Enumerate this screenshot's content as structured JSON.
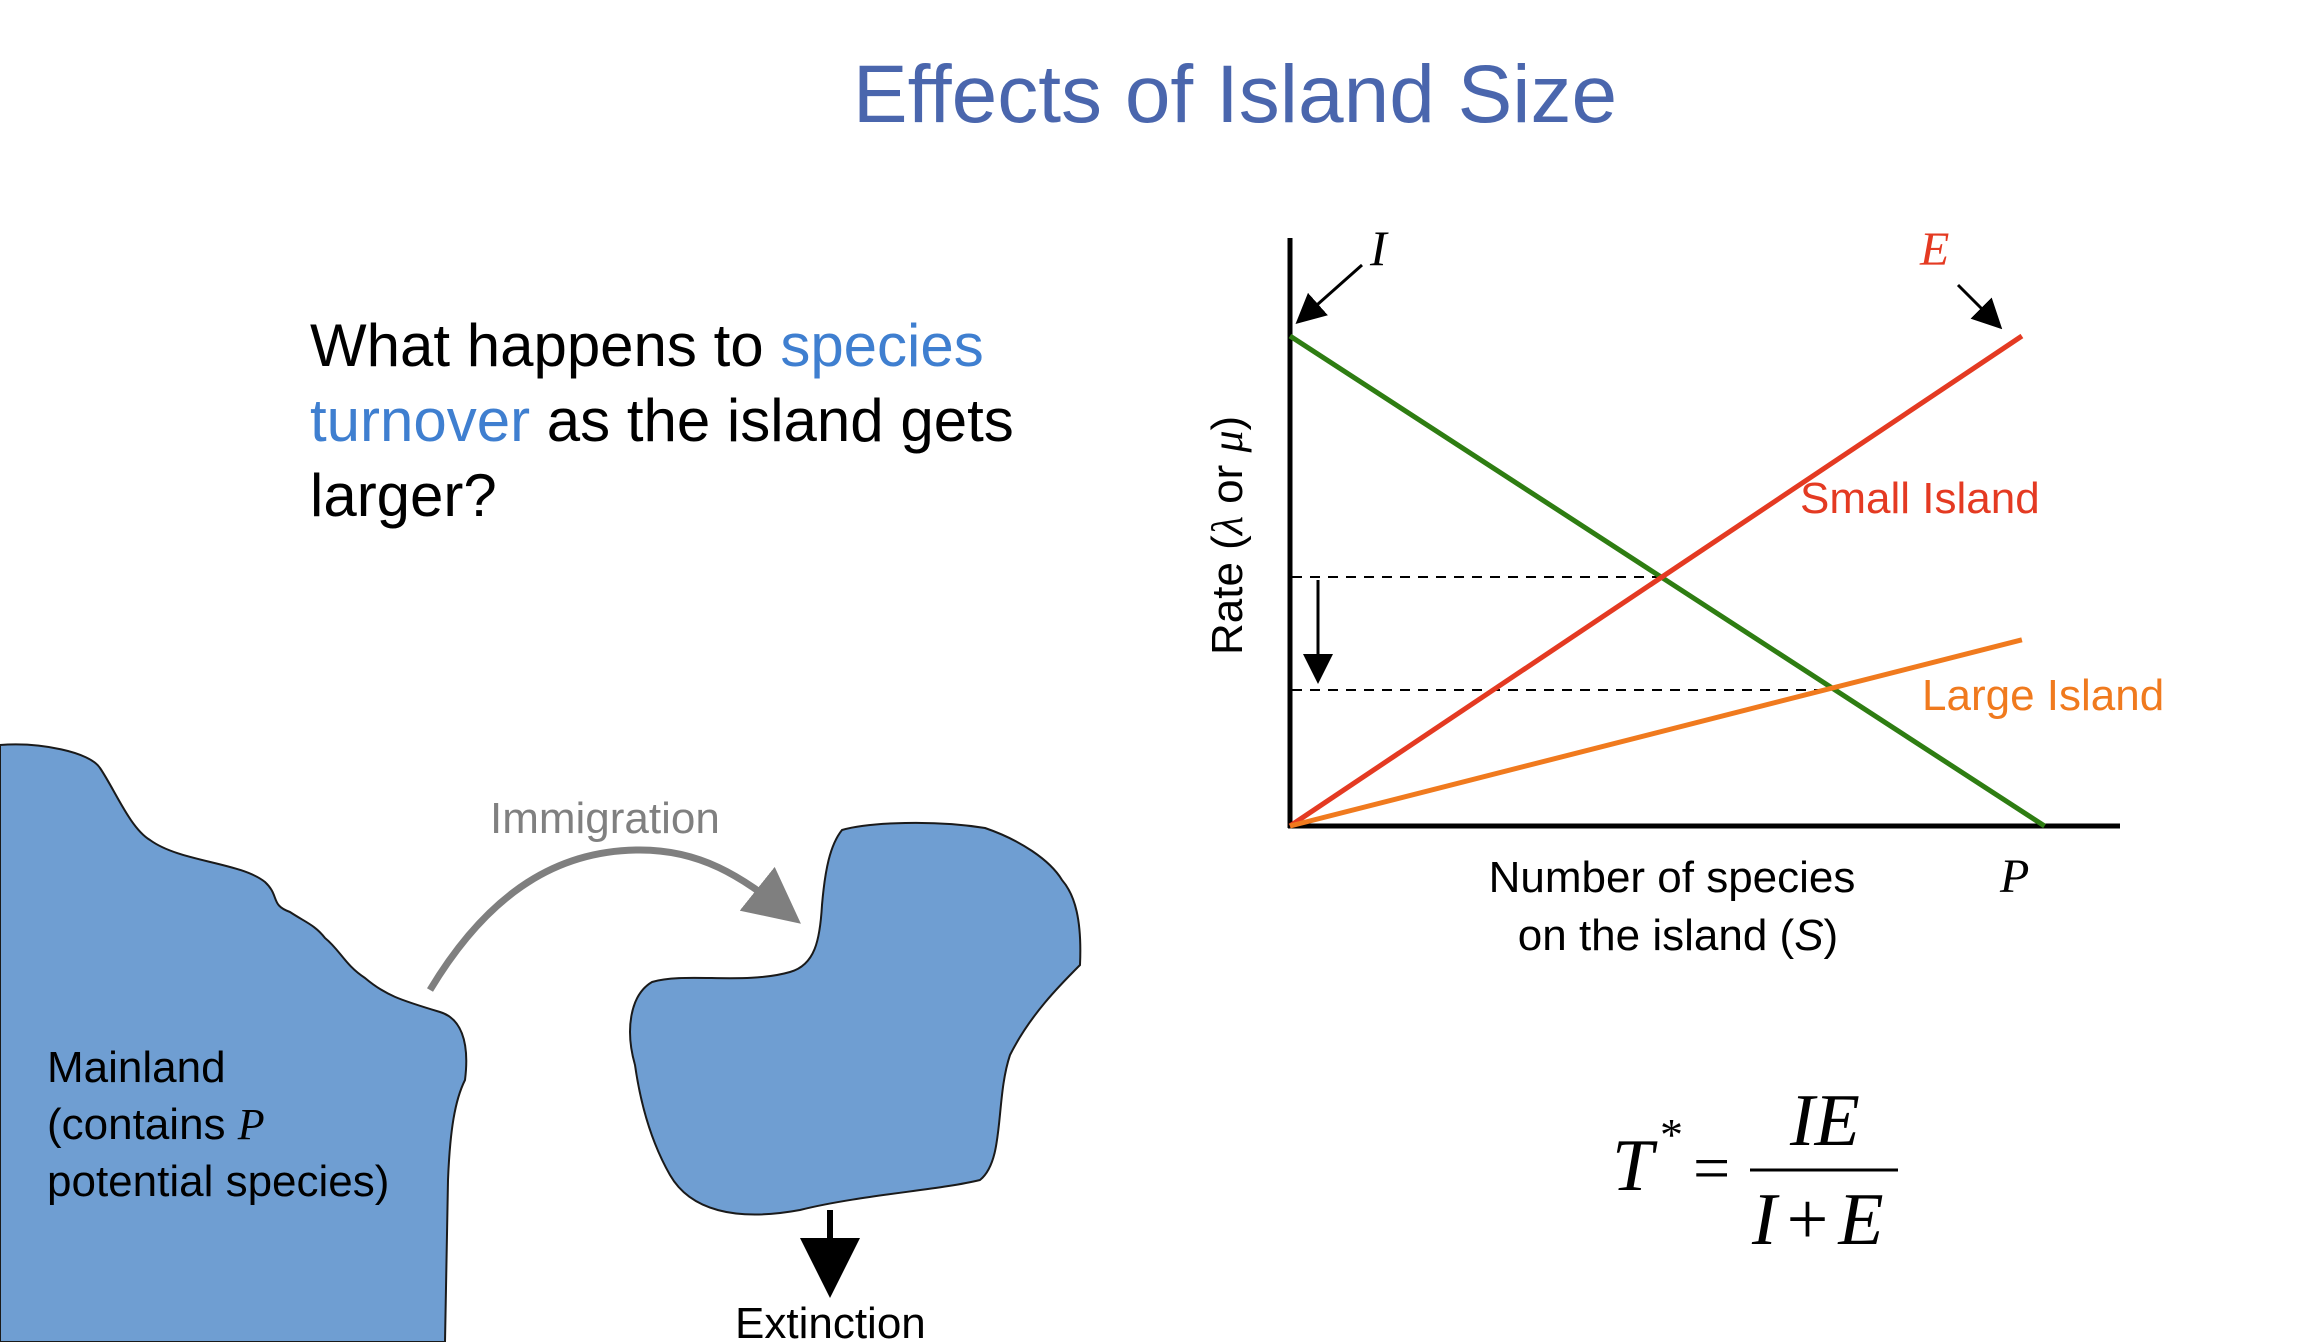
{
  "slide": {
    "title": "Effects of Island Size",
    "question": {
      "part1": "What happens to ",
      "highlight": "species turnover",
      "part2": " as the island gets larger?"
    }
  },
  "map": {
    "mainland_line1": "Mainland",
    "mainland_line2_prefix": "(contains ",
    "mainland_line2_var": "P",
    "mainland_line3": "potential species)",
    "immigration_label": "Immigration",
    "extinction_label": "Extinction"
  },
  "chart_data": {
    "type": "line",
    "ylabel_prefix": "Rate (",
    "ylabel_lambda": "λ",
    "ylabel_or": " or ",
    "ylabel_mu": "μ",
    "ylabel_suffix": ")",
    "xlabel_line1": "Number of species",
    "xlabel_line2_prefix": "on the island (",
    "xlabel_line2_var": "S",
    "xlabel_line2_suffix": ")",
    "x_end_label": "P",
    "immigration_curve_label": "I",
    "extinction_curve_label": "E",
    "series": [
      {
        "name": "I",
        "color": "#2e7d12",
        "points": [
          [
            0,
            1.0
          ],
          [
            1,
            0
          ]
        ]
      },
      {
        "name": "Small Island",
        "color": "#e43a22",
        "points": [
          [
            0,
            0
          ],
          [
            0.97,
            1.0
          ]
        ]
      },
      {
        "name": "Large Island",
        "color": "#f07a1e",
        "points": [
          [
            0,
            0
          ],
          [
            0.97,
            0.38
          ]
        ]
      }
    ],
    "xlim": [
      0,
      1.1
    ],
    "ylim": [
      0,
      1.2
    ],
    "grid": false
  },
  "equation": {
    "lhs": "T",
    "lhs_sup": "*",
    "equals": "=",
    "numerator": "IE",
    "denominator_a": "I",
    "denominator_op": "+",
    "denominator_b": "E"
  },
  "colors": {
    "title": "#4a66ad",
    "highlight": "#3f7fd0",
    "land": "#6f9ed2",
    "immigration_arrow": "#7f7f7f",
    "immigration_text": "#808080"
  }
}
